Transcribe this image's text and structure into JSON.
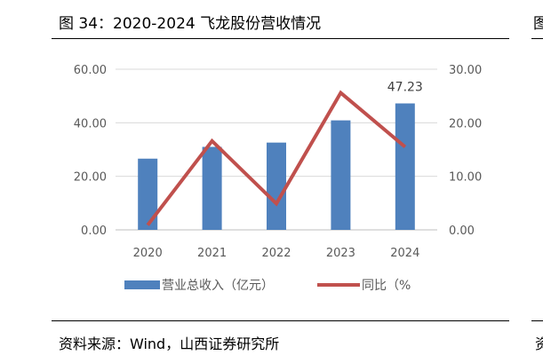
{
  "figure": {
    "title": "图 34：2020-2024 飞龙股份营收情况",
    "source": "资料来源：Wind，山西证券研究所",
    "edge_glyph_top": "图",
    "edge_glyph_bottom": "资"
  },
  "chart_data": {
    "type": "bar",
    "categories": [
      "2020",
      "2021",
      "2022",
      "2023",
      "2024"
    ],
    "series": [
      {
        "name": "营业总收入（亿元）",
        "type": "bar",
        "axis": "left",
        "color": "#4f81bd",
        "values": [
          26.6,
          31.0,
          32.6,
          40.9,
          47.23
        ]
      },
      {
        "name": "同比（%",
        "type": "line",
        "axis": "right",
        "color": "#c0504d",
        "values": [
          0.9,
          16.6,
          4.9,
          25.6,
          15.5
        ]
      }
    ],
    "left_axis": {
      "ylim": [
        0,
        60
      ],
      "ticks": [
        "0.00",
        "20.00",
        "40.00",
        "60.00"
      ]
    },
    "right_axis": {
      "ylim": [
        0,
        30
      ],
      "ticks": [
        "0.00",
        "10.00",
        "20.00",
        "30.00"
      ]
    },
    "data_labels": [
      {
        "category": "2024",
        "series": "营业总收入（亿元）",
        "text": "47.23"
      }
    ],
    "grid": true,
    "legend": "bottom"
  }
}
